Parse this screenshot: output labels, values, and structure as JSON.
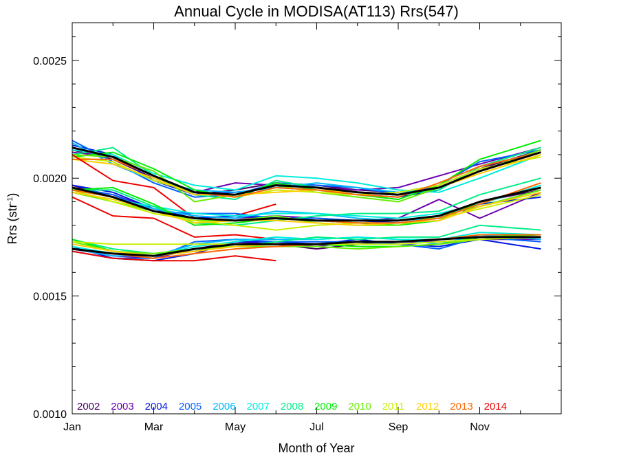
{
  "chart_data": {
    "type": "line",
    "title": "Annual Cycle in MODISA(AT113) Rrs(547)",
    "xlabel": "Month of Year",
    "ylabel": {
      "base": "Rrs (str",
      "sup": "-1",
      "end": ")"
    },
    "xlim": [
      0,
      12
    ],
    "ylim": [
      0.001,
      0.00266
    ],
    "x_ticks": [
      {
        "x": 0,
        "label": "Jan"
      },
      {
        "x": 2,
        "label": "Mar"
      },
      {
        "x": 4,
        "label": "May"
      },
      {
        "x": 6,
        "label": "Jul"
      },
      {
        "x": 8,
        "label": "Sep"
      },
      {
        "x": 10,
        "label": "Nov"
      }
    ],
    "y_ticks": [
      {
        "y": 0.001,
        "label": "0.0010"
      },
      {
        "y": 0.0015,
        "label": "0.0015"
      },
      {
        "y": 0.002,
        "label": "0.0020"
      },
      {
        "y": 0.0025,
        "label": "0.0025"
      }
    ],
    "x": [
      0,
      1,
      2,
      3,
      4,
      5,
      6,
      7,
      8,
      9,
      10,
      11.5
    ],
    "legend_position": "bottom-left, inside plot",
    "legend": [
      {
        "label": "2002",
        "color": "#4a0066"
      },
      {
        "label": "2003",
        "color": "#6a00b0"
      },
      {
        "label": "2004",
        "color": "#0018e0"
      },
      {
        "label": "2005",
        "color": "#0060ff"
      },
      {
        "label": "2006",
        "color": "#00b8ff"
      },
      {
        "label": "2007",
        "color": "#00eedd"
      },
      {
        "label": "2008",
        "color": "#00ee88"
      },
      {
        "label": "2009",
        "color": "#00ee00"
      },
      {
        "label": "2010",
        "color": "#66ee00"
      },
      {
        "label": "2011",
        "color": "#ccee00"
      },
      {
        "label": "2012",
        "color": "#ffcc00"
      },
      {
        "label": "2013",
        "color": "#ff6600"
      },
      {
        "label": "2014",
        "color": "#ee0000"
      }
    ],
    "groups": [
      {
        "mean": [
          0.00213,
          0.00209,
          0.00201,
          0.00194,
          0.00193,
          0.00197,
          0.00196,
          0.00194,
          0.00193,
          0.00196,
          0.00203,
          0.00211
        ],
        "series": [
          {
            "year": "2002",
            "values": [
              0.00212,
              0.00208,
              0.002,
              0.00193,
              0.00195,
              0.00198,
              0.00197,
              0.00195,
              0.00194,
              0.00197,
              0.00204,
              0.00212
            ]
          },
          {
            "year": "2003",
            "values": [
              0.00211,
              0.00209,
              0.00201,
              0.00194,
              0.00198,
              0.00197,
              0.00196,
              0.00195,
              0.00196,
              0.00201,
              0.00206,
              0.00213
            ]
          },
          {
            "year": "2004",
            "values": [
              0.00214,
              0.0021,
              0.00199,
              0.00193,
              0.00194,
              0.00196,
              0.00195,
              0.00193,
              0.00192,
              0.00195,
              0.00205,
              0.00211
            ]
          },
          {
            "year": "2005",
            "values": [
              0.00216,
              0.00207,
              0.00198,
              0.00192,
              0.00193,
              0.00198,
              0.00197,
              0.00196,
              0.00193,
              0.00197,
              0.00207,
              0.00212
            ]
          },
          {
            "year": "2006",
            "values": [
              0.00215,
              0.00206,
              0.00199,
              0.00195,
              0.00194,
              0.00196,
              0.00198,
              0.00196,
              0.00194,
              0.00196,
              0.00203,
              0.00211
            ]
          },
          {
            "year": "2007",
            "values": [
              0.00212,
              0.0021,
              0.00202,
              0.00197,
              0.00195,
              0.00201,
              0.002,
              0.00198,
              0.00195,
              0.00194,
              0.002,
              0.0021
            ]
          },
          {
            "year": "2008",
            "values": [
              0.0021,
              0.00213,
              0.00201,
              0.00193,
              0.00191,
              0.00199,
              0.00196,
              0.00194,
              0.00193,
              0.00195,
              0.00205,
              0.00213
            ]
          },
          {
            "year": "2009",
            "values": [
              0.00209,
              0.00211,
              0.00204,
              0.00195,
              0.00192,
              0.00198,
              0.00195,
              0.00193,
              0.00191,
              0.00197,
              0.00208,
              0.00216
            ]
          },
          {
            "year": "2010",
            "values": [
              0.0021,
              0.00209,
              0.00203,
              0.0019,
              0.00193,
              0.00197,
              0.00194,
              0.00192,
              0.0019,
              0.00196,
              0.00203,
              0.00212
            ]
          },
          {
            "year": "2011",
            "values": [
              0.00209,
              0.00207,
              0.00199,
              0.00194,
              0.00192,
              0.00195,
              0.00194,
              0.00193,
              0.00194,
              0.00197,
              0.00204,
              0.00209
            ]
          },
          {
            "year": "2012",
            "values": [
              0.00208,
              0.00206,
              0.002,
              0.00193,
              0.00193,
              0.00194,
              0.00195,
              0.00194,
              0.00193,
              0.00196,
              0.00202,
              0.0021
            ]
          },
          {
            "year": "2013",
            "values": [
              0.00208,
              0.00208,
              0.00201,
              0.00194,
              0.00192,
              0.00196,
              0.00195,
              0.00193,
              0.00192,
              0.00198,
              0.00205,
              0.00211
            ]
          },
          {
            "year": "2014",
            "values": [
              0.0021,
              0.00199,
              0.00196,
              0.00183,
              0.00184,
              0.00189
            ]
          }
        ]
      },
      {
        "mean": [
          0.00196,
          0.00192,
          0.00186,
          0.00183,
          0.00182,
          0.00183,
          0.00182,
          0.00182,
          0.00182,
          0.00184,
          0.0019,
          0.00196
        ],
        "series": [
          {
            "year": "2002",
            "values": [
              0.00197,
              0.00192,
              0.00186,
              0.00183,
              0.00182,
              0.00183,
              0.00182,
              0.00181,
              0.00181,
              0.00183,
              0.0019,
              0.00195
            ]
          },
          {
            "year": "2003",
            "values": [
              0.00196,
              0.00193,
              0.00187,
              0.00184,
              0.00183,
              0.00184,
              0.00183,
              0.00182,
              0.00183,
              0.00191,
              0.00183,
              0.00194
            ]
          },
          {
            "year": "2004",
            "values": [
              0.00197,
              0.00194,
              0.00187,
              0.00183,
              0.00184,
              0.00183,
              0.00182,
              0.00182,
              0.00181,
              0.00183,
              0.00189,
              0.00192
            ]
          },
          {
            "year": "2005",
            "values": [
              0.00196,
              0.00193,
              0.00186,
              0.00185,
              0.00185,
              0.00183,
              0.00183,
              0.00182,
              0.00182,
              0.00184,
              0.00188,
              0.00195
            ]
          },
          {
            "year": "2006",
            "values": [
              0.00195,
              0.00192,
              0.00187,
              0.00184,
              0.00183,
              0.00186,
              0.00185,
              0.00183,
              0.00182,
              0.00183,
              0.0019,
              0.00196
            ]
          },
          {
            "year": "2007",
            "values": [
              0.00194,
              0.00191,
              0.00188,
              0.00185,
              0.00184,
              0.00185,
              0.00185,
              0.00184,
              0.00183,
              0.00185,
              0.00189,
              0.00197
            ]
          },
          {
            "year": "2008",
            "values": [
              0.00195,
              0.00195,
              0.00188,
              0.00181,
              0.0018,
              0.00182,
              0.00184,
              0.00185,
              0.00185,
              0.00186,
              0.00193,
              0.002
            ]
          },
          {
            "year": "2009",
            "values": [
              0.00195,
              0.00196,
              0.00189,
              0.0018,
              0.00181,
              0.00183,
              0.00182,
              0.00181,
              0.0018,
              0.00182,
              0.0019,
              0.00196
            ]
          },
          {
            "year": "2010",
            "values": [
              0.00194,
              0.0019,
              0.00186,
              0.00182,
              0.00182,
              0.00184,
              0.00181,
              0.0018,
              0.0018,
              0.00184,
              0.00188,
              0.00195
            ]
          },
          {
            "year": "2011",
            "values": [
              0.00195,
              0.0019,
              0.00185,
              0.00182,
              0.0018,
              0.00178,
              0.0018,
              0.00181,
              0.00181,
              0.00183,
              0.00187,
              0.00193
            ]
          },
          {
            "year": "2012",
            "values": [
              0.00194,
              0.00191,
              0.00186,
              0.00181,
              0.00182,
              0.00182,
              0.00181,
              0.0018,
              0.00181,
              0.00182,
              0.00188,
              0.00194
            ]
          },
          {
            "year": "2013",
            "values": [
              0.00195,
              0.00192,
              0.00186,
              0.00183,
              0.00182,
              0.00183,
              0.00182,
              0.00181,
              0.00181,
              0.00183,
              0.00189,
              0.00198
            ]
          },
          {
            "year": "2014",
            "values": [
              0.00192,
              0.00184,
              0.00183,
              0.00175,
              0.00176,
              0.00174
            ]
          }
        ]
      },
      {
        "mean": [
          0.0017,
          0.00168,
          0.00167,
          0.0017,
          0.00172,
          0.00172,
          0.00172,
          0.00173,
          0.00173,
          0.00174,
          0.00175,
          0.00175
        ],
        "series": [
          {
            "year": "2002",
            "values": [
              0.0017,
              0.00168,
              0.00167,
              0.00169,
              0.00172,
              0.00172,
              0.0017,
              0.00172,
              0.00173,
              0.00173,
              0.00174,
              0.00175
            ]
          },
          {
            "year": "2003",
            "values": [
              0.0017,
              0.00167,
              0.00166,
              0.0017,
              0.00173,
              0.00172,
              0.00171,
              0.00173,
              0.00173,
              0.00173,
              0.00174,
              0.00174
            ]
          },
          {
            "year": "2004",
            "values": [
              0.00171,
              0.00166,
              0.00165,
              0.00168,
              0.00173,
              0.00173,
              0.00172,
              0.00174,
              0.00172,
              0.00171,
              0.00174,
              0.0017
            ]
          },
          {
            "year": "2005",
            "values": [
              0.00169,
              0.00166,
              0.00166,
              0.00173,
              0.00174,
              0.00173,
              0.00173,
              0.00173,
              0.00172,
              0.0017,
              0.00175,
              0.00173
            ]
          },
          {
            "year": "2006",
            "values": [
              0.0017,
              0.00167,
              0.00167,
              0.00172,
              0.00174,
              0.00174,
              0.00174,
              0.00175,
              0.00174,
              0.00172,
              0.00176,
              0.00174
            ]
          },
          {
            "year": "2007",
            "values": [
              0.00171,
              0.00168,
              0.00167,
              0.00171,
              0.00173,
              0.00175,
              0.00174,
              0.00175,
              0.00174,
              0.00174,
              0.00177,
              0.00176
            ]
          },
          {
            "year": "2008",
            "values": [
              0.00174,
              0.0017,
              0.00168,
              0.0017,
              0.00171,
              0.00173,
              0.00175,
              0.00174,
              0.00175,
              0.00175,
              0.0018,
              0.00178
            ]
          },
          {
            "year": "2009",
            "values": [
              0.00174,
              0.00169,
              0.00167,
              0.00169,
              0.00172,
              0.00172,
              0.00172,
              0.00171,
              0.00171,
              0.00172,
              0.00175,
              0.00176
            ]
          },
          {
            "year": "2010",
            "values": [
              0.00173,
              0.00169,
              0.00168,
              0.0017,
              0.00171,
              0.00171,
              0.00171,
              0.0017,
              0.00171,
              0.00172,
              0.00174,
              0.00175
            ]
          },
          {
            "year": "2011",
            "values": [
              0.00173,
              0.00172,
              0.00172,
              0.00172,
              0.00172,
              0.00172,
              0.00172,
              0.00172,
              0.00172,
              0.00173,
              0.00174,
              0.00175
            ]
          },
          {
            "year": "2012",
            "values": [
              0.00172,
              0.00169,
              0.00167,
              0.00169,
              0.00171,
              0.00172,
              0.00172,
              0.00173,
              0.00173,
              0.00174,
              0.00175,
              0.00175
            ]
          },
          {
            "year": "2013",
            "values": [
              0.0017,
              0.00168,
              0.00166,
              0.00168,
              0.0017,
              0.00171,
              0.00172,
              0.00173,
              0.00173,
              0.00174,
              0.00176,
              0.00176
            ]
          },
          {
            "year": "2014",
            "values": [
              0.00169,
              0.00166,
              0.00165,
              0.00165,
              0.00167,
              0.00165
            ]
          }
        ]
      }
    ]
  }
}
